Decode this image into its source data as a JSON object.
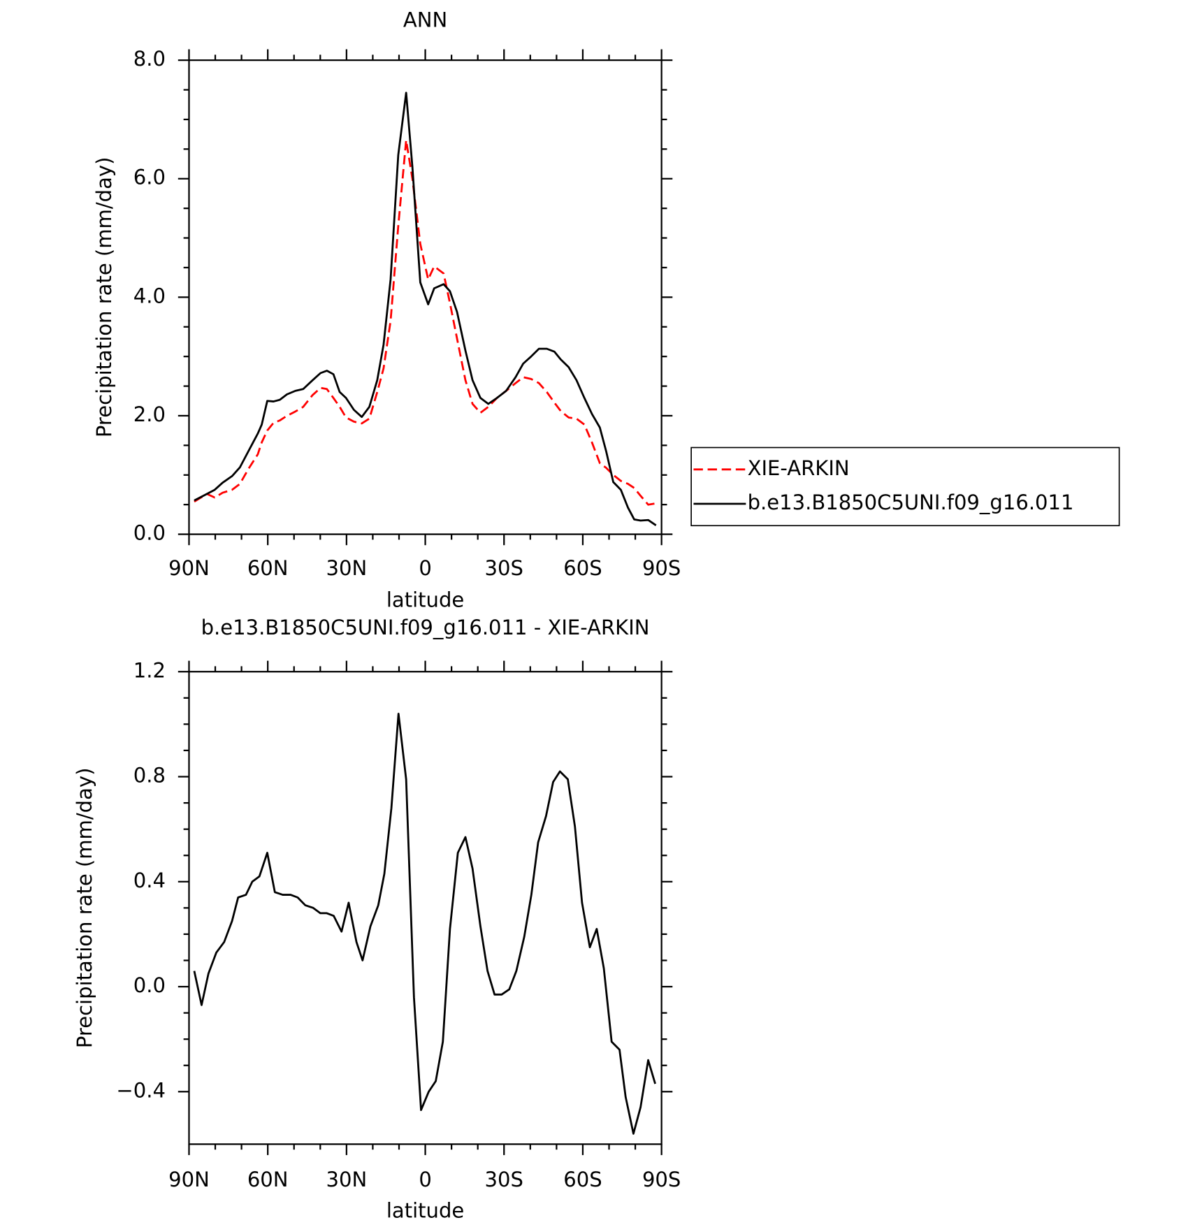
{
  "chart_data": [
    {
      "type": "line",
      "title": "ANN",
      "xlabel": "latitude",
      "ylabel": "Precipitation rate (mm/day)",
      "x": [
        88,
        83.2,
        80.2,
        77.2,
        73.6,
        70.6,
        67.4,
        63.8,
        62.3,
        60.2,
        57.8,
        55.4,
        52.7,
        49.5,
        46.5,
        42.9,
        39.9,
        37.5,
        35,
        32.6,
        30.2,
        27.2,
        24.2,
        21.3,
        18.3,
        15.9,
        13.2,
        10.3,
        7.3,
        4.9,
        1.9,
        -1.1,
        -3.4,
        -7,
        -9.4,
        -12.1,
        -15.3,
        -18,
        -21,
        -24,
        -27.3,
        -30.8,
        -34.4,
        -37.3,
        -40.3,
        -43.3,
        -46.3,
        -49.2,
        -51.6,
        -54.6,
        -57.6,
        -60.6,
        -63.5,
        -66.5,
        -68.9,
        -71.6,
        -74.5,
        -77.2,
        -79.6,
        -82,
        -84.9,
        -87.9
      ],
      "series": [
        {
          "name": "XIE-ARKIN",
          "color": "#ff0000",
          "dashed": true,
          "values": [
            0.55,
            0.68,
            0.62,
            0.7,
            0.75,
            0.85,
            1.1,
            1.35,
            1.55,
            1.75,
            1.88,
            1.92,
            2.0,
            2.07,
            2.15,
            2.35,
            2.47,
            2.45,
            2.3,
            2.15,
            1.97,
            1.9,
            1.87,
            1.95,
            2.4,
            2.8,
            3.6,
            5.2,
            6.65,
            6.0,
            4.9,
            4.3,
            4.52,
            4.4,
            3.9,
            3.3,
            2.6,
            2.2,
            2.05,
            2.15,
            2.3,
            2.42,
            2.55,
            2.65,
            2.62,
            2.55,
            2.4,
            2.22,
            2.08,
            1.97,
            1.95,
            1.85,
            1.55,
            1.2,
            1.12,
            1.0,
            0.9,
            0.85,
            0.78,
            0.65,
            0.5,
            0.52
          ]
        },
        {
          "name": "b.e13.B1850C5UNI.f09_g16.011",
          "color": "#000000",
          "dashed": false,
          "values": [
            0.57,
            0.68,
            0.75,
            0.87,
            0.98,
            1.13,
            1.4,
            1.7,
            1.85,
            2.25,
            2.24,
            2.27,
            2.36,
            2.42,
            2.45,
            2.6,
            2.72,
            2.76,
            2.7,
            2.4,
            2.3,
            2.1,
            1.98,
            2.15,
            2.6,
            3.2,
            4.3,
            6.4,
            7.45,
            6.2,
            4.25,
            3.88,
            4.15,
            4.22,
            4.1,
            3.75,
            3.1,
            2.6,
            2.3,
            2.2,
            2.3,
            2.42,
            2.65,
            2.88,
            3.0,
            3.13,
            3.13,
            3.08,
            2.95,
            2.82,
            2.6,
            2.3,
            2.03,
            1.8,
            1.4,
            0.88,
            0.75,
            0.45,
            0.25,
            0.23,
            0.24,
            0.15
          ]
        }
      ],
      "xlim": [
        90,
        -90
      ],
      "xticks": [
        {
          "value": 90,
          "label": "90N"
        },
        {
          "value": 60,
          "label": "60N"
        },
        {
          "value": 30,
          "label": "30N"
        },
        0,
        {
          "value": -30,
          "label": "30S"
        },
        {
          "value": -60,
          "label": "60S"
        },
        {
          "value": -90,
          "label": "90S"
        }
      ],
      "ylim": [
        0,
        8
      ],
      "yticks": [
        {
          "value": 0,
          "label": "0.0"
        },
        {
          "value": 2,
          "label": "2.0"
        },
        {
          "value": 4,
          "label": "4.0"
        },
        {
          "value": 6,
          "label": "6.0"
        },
        {
          "value": 8,
          "label": "8.0"
        }
      ],
      "legend": "right"
    },
    {
      "type": "line",
      "title": "b.e13.B1850C5UNI.f09_g16.011 - XIE-ARKIN",
      "xlabel": "latitude",
      "ylabel": "Precipitation rate (mm/day)",
      "x": [
        88,
        85.2,
        82.6,
        79.6,
        76.6,
        73.6,
        71.3,
        68.3,
        65.9,
        63.2,
        60.2,
        57.3,
        54.3,
        51.3,
        48.6,
        45.7,
        42.7,
        40,
        37.6,
        34.9,
        31.9,
        29.2,
        26.2,
        23.9,
        20.9,
        17.9,
        15.6,
        12.9,
        10.2,
        7.3,
        4.3,
        1.6,
        -1.3,
        -4,
        -6.7,
        -9.4,
        -12.4,
        -15.3,
        -18,
        -21,
        -23.7,
        -26.4,
        -29.1,
        -32,
        -34.7,
        -37.7,
        -40.4,
        -43,
        -46,
        -48.7,
        -51.3,
        -54.3,
        -57,
        -59.7,
        -62.7,
        -65.3,
        -68,
        -71,
        -74,
        -76.3,
        -79.3,
        -82,
        -84.9,
        -87.6
      ],
      "series": [
        {
          "color": "#000000",
          "dashed": false,
          "values": [
            0.06,
            -0.07,
            0.05,
            0.13,
            0.17,
            0.25,
            0.34,
            0.35,
            0.4,
            0.42,
            0.51,
            0.36,
            0.35,
            0.35,
            0.34,
            0.31,
            0.3,
            0.28,
            0.28,
            0.27,
            0.21,
            0.32,
            0.17,
            0.1,
            0.23,
            0.31,
            0.43,
            0.68,
            1.04,
            0.79,
            -0.04,
            -0.47,
            -0.4,
            -0.36,
            -0.21,
            0.22,
            0.51,
            0.57,
            0.45,
            0.23,
            0.06,
            -0.03,
            -0.03,
            -0.01,
            0.06,
            0.19,
            0.35,
            0.55,
            0.65,
            0.78,
            0.82,
            0.79,
            0.61,
            0.32,
            0.15,
            0.22,
            0.07,
            -0.21,
            -0.24,
            -0.42,
            -0.56,
            -0.46,
            -0.28,
            -0.37
          ]
        }
      ],
      "xlim": [
        90,
        -90
      ],
      "xticks": [
        {
          "value": 90,
          "label": "90N"
        },
        {
          "value": 60,
          "label": "60N"
        },
        {
          "value": 30,
          "label": "30N"
        },
        0,
        {
          "value": -30,
          "label": "30S"
        },
        {
          "value": -60,
          "label": "60S"
        },
        {
          "value": -90,
          "label": "90S"
        }
      ],
      "ylim": [
        -0.6,
        1.2
      ],
      "yticks": [
        {
          "value": -0.4,
          "label": "−0.4"
        },
        {
          "value": 0,
          "label": "0.0"
        },
        {
          "value": 0.4,
          "label": "0.4"
        },
        {
          "value": 0.8,
          "label": "0.8"
        },
        {
          "value": 1.2,
          "label": "1.2"
        }
      ]
    }
  ]
}
